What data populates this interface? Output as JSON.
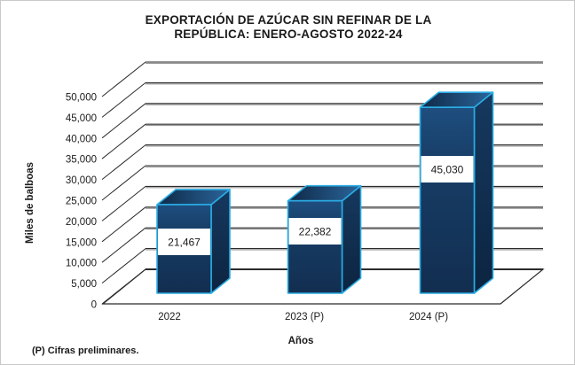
{
  "chart_data": {
    "type": "bar",
    "style": "3d-column",
    "title": "EXPORTACIÓN DE AZÚCAR SIN REFINAR DE LA REPÚBLICA: ENERO-AGOSTO 2022-24",
    "title_line1": "EXPORTACIÓN  DE  AZÚCAR   SIN REFINAR  DE  LA",
    "title_line2": "REPÚBLICA:  ENERO-AGOSTO  2022-24",
    "categories": [
      "2022",
      "2023 (P)",
      "2024 (P)"
    ],
    "values": [
      21467,
      22382,
      45030
    ],
    "value_labels": [
      "21,467",
      "22,382",
      "45,030"
    ],
    "xlabel": "Años",
    "ylabel": "Miles de balboas",
    "ylim": [
      0,
      50000
    ],
    "ytick_step": 5000,
    "yticks": [
      "0",
      "5,000",
      "10,000",
      "15,000",
      "20,000",
      "25,000",
      "30,000",
      "35,000",
      "40,000",
      "45,000",
      "50,000"
    ],
    "grid": "on",
    "legend": "none",
    "footnote": "(P) Cifras preliminares.",
    "colors": {
      "title": "#203864",
      "text": "#1a1a1a",
      "grid_dark": "#2b2b2b",
      "grid_shadow": "#949494",
      "bar_front_light": "#1e4e7f",
      "bar_front_dark": "#122e50",
      "bar_top_left": "#0e2946",
      "bar_top_right": "#2b659b",
      "bar_side_light": "#16395f",
      "bar_side_dark": "#0c2440",
      "bar_edge": "#2aace3",
      "value_box_bg": "#ffffff",
      "footnote": "#203864",
      "frame_border": "#c9c9c9"
    }
  }
}
